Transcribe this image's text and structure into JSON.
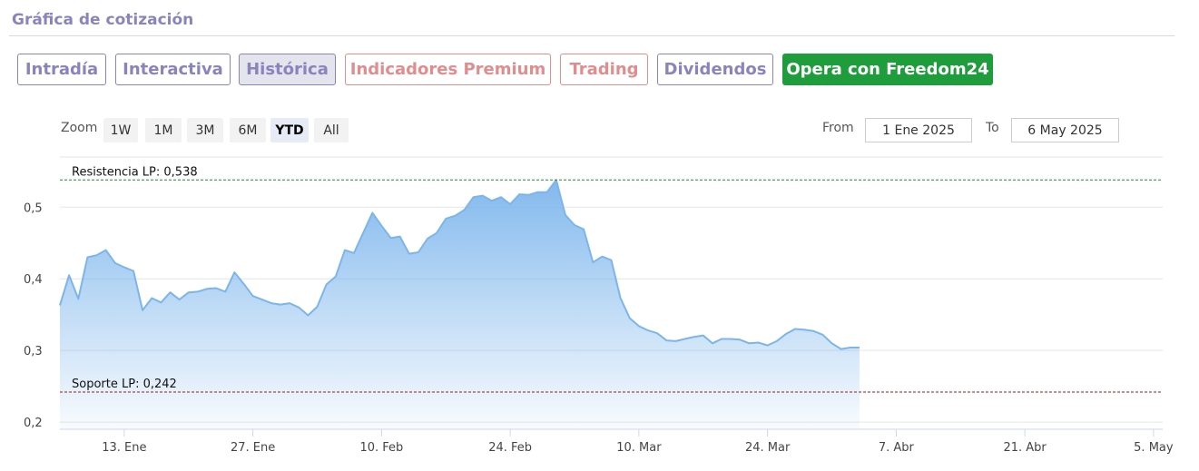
{
  "page_title": "Gráfica de cotización",
  "tabs": [
    {
      "label": "Intradía",
      "style": "purple"
    },
    {
      "label": "Interactiva",
      "style": "purple"
    },
    {
      "label": "Histórica",
      "style": "purple",
      "active": true
    },
    {
      "label": "Indicadores Premium",
      "style": "red"
    },
    {
      "label": "Trading",
      "style": "red"
    },
    {
      "label": "Dividendos",
      "style": "purple"
    },
    {
      "label": "Opera con Freedom24",
      "style": "green"
    }
  ],
  "zoom": {
    "label": "Zoom",
    "buttons": [
      "1W",
      "1M",
      "3M",
      "6M",
      "YTD",
      "All"
    ],
    "selected": "YTD"
  },
  "range": {
    "from_label": "From",
    "from_value": "1 Ene 2025",
    "to_label": "To",
    "to_value": "6 May 2025"
  },
  "colors": {
    "accent_purple": "#8a84bd",
    "accent_red": "#e08d8d",
    "accent_green": "#1f9d3c",
    "series_line": "#7cb5ec",
    "resistance_line": "#1e8a2e",
    "support_line": "#a01818"
  },
  "chart_data": {
    "type": "area",
    "title": "",
    "xlabel": "",
    "ylabel": "",
    "ylim": [
      0.19,
      0.57
    ],
    "xlim": [
      "2025-01-06",
      "2025-05-06"
    ],
    "yticks": [
      0.2,
      0.3,
      0.4,
      0.5
    ],
    "ytick_labels": [
      "0,2",
      "0,3",
      "0,4",
      "0,5"
    ],
    "xticks": [
      {
        "date": "2025-01-13",
        "label": "13. Ene"
      },
      {
        "date": "2025-01-27",
        "label": "27. Ene"
      },
      {
        "date": "2025-02-10",
        "label": "10. Feb"
      },
      {
        "date": "2025-02-24",
        "label": "24. Feb"
      },
      {
        "date": "2025-03-10",
        "label": "10. Mar"
      },
      {
        "date": "2025-03-24",
        "label": "24. Mar"
      },
      {
        "date": "2025-04-07",
        "label": "7. Abr"
      },
      {
        "date": "2025-04-21",
        "label": "21. Abr"
      },
      {
        "date": "2025-05-05",
        "label": "5. May"
      }
    ],
    "grid": true,
    "reference_lines": [
      {
        "label": "Resistencia LP: 0,538",
        "value": 0.538,
        "style": "dashed",
        "color": "#1e8a2e"
      },
      {
        "label": "Soporte LP: 0,242",
        "value": 0.242,
        "style": "dashed",
        "color": "#a01818"
      }
    ],
    "series": [
      {
        "points": [
          [
            "2025-01-06",
            0.363
          ],
          [
            "2025-01-07",
            0.405
          ],
          [
            "2025-01-08",
            0.372
          ],
          [
            "2025-01-09",
            0.43
          ],
          [
            "2025-01-10",
            0.433
          ],
          [
            "2025-01-11",
            0.44
          ],
          [
            "2025-01-12",
            0.422
          ],
          [
            "2025-01-13",
            0.416
          ],
          [
            "2025-01-14",
            0.411
          ],
          [
            "2025-01-15",
            0.356
          ],
          [
            "2025-01-16",
            0.373
          ],
          [
            "2025-01-17",
            0.367
          ],
          [
            "2025-01-18",
            0.381
          ],
          [
            "2025-01-19",
            0.371
          ],
          [
            "2025-01-20",
            0.381
          ],
          [
            "2025-01-21",
            0.382
          ],
          [
            "2025-01-22",
            0.386
          ],
          [
            "2025-01-23",
            0.387
          ],
          [
            "2025-01-24",
            0.382
          ],
          [
            "2025-01-25",
            0.409
          ],
          [
            "2025-01-26",
            0.393
          ],
          [
            "2025-01-27",
            0.376
          ],
          [
            "2025-01-28",
            0.371
          ],
          [
            "2025-01-29",
            0.366
          ],
          [
            "2025-01-30",
            0.364
          ],
          [
            "2025-01-31",
            0.366
          ],
          [
            "2025-02-01",
            0.36
          ],
          [
            "2025-02-02",
            0.349
          ],
          [
            "2025-02-03",
            0.361
          ],
          [
            "2025-02-04",
            0.392
          ],
          [
            "2025-02-05",
            0.403
          ],
          [
            "2025-02-06",
            0.44
          ],
          [
            "2025-02-07",
            0.436
          ],
          [
            "2025-02-08",
            0.464
          ],
          [
            "2025-02-09",
            0.492
          ],
          [
            "2025-02-10",
            0.474
          ],
          [
            "2025-02-11",
            0.457
          ],
          [
            "2025-02-12",
            0.459
          ],
          [
            "2025-02-13",
            0.435
          ],
          [
            "2025-02-14",
            0.437
          ],
          [
            "2025-02-15",
            0.456
          ],
          [
            "2025-02-16",
            0.464
          ],
          [
            "2025-02-17",
            0.484
          ],
          [
            "2025-02-18",
            0.488
          ],
          [
            "2025-02-19",
            0.496
          ],
          [
            "2025-02-20",
            0.514
          ],
          [
            "2025-02-21",
            0.516
          ],
          [
            "2025-02-22",
            0.509
          ],
          [
            "2025-02-23",
            0.514
          ],
          [
            "2025-02-24",
            0.504
          ],
          [
            "2025-02-25",
            0.518
          ],
          [
            "2025-02-26",
            0.517
          ],
          [
            "2025-02-27",
            0.521
          ],
          [
            "2025-02-28",
            0.521
          ],
          [
            "2025-03-01",
            0.538
          ],
          [
            "2025-03-02",
            0.489
          ],
          [
            "2025-03-03",
            0.475
          ],
          [
            "2025-03-04",
            0.469
          ],
          [
            "2025-03-05",
            0.423
          ],
          [
            "2025-03-06",
            0.431
          ],
          [
            "2025-03-07",
            0.426
          ],
          [
            "2025-03-08",
            0.373
          ],
          [
            "2025-03-09",
            0.345
          ],
          [
            "2025-03-10",
            0.334
          ],
          [
            "2025-03-11",
            0.328
          ],
          [
            "2025-03-12",
            0.324
          ],
          [
            "2025-03-13",
            0.314
          ],
          [
            "2025-03-14",
            0.313
          ],
          [
            "2025-03-15",
            0.316
          ],
          [
            "2025-03-16",
            0.319
          ],
          [
            "2025-03-17",
            0.321
          ],
          [
            "2025-03-18",
            0.31
          ],
          [
            "2025-03-19",
            0.316
          ],
          [
            "2025-03-20",
            0.316
          ],
          [
            "2025-03-21",
            0.315
          ],
          [
            "2025-03-22",
            0.31
          ],
          [
            "2025-03-23",
            0.311
          ],
          [
            "2025-03-24",
            0.307
          ],
          [
            "2025-03-25",
            0.313
          ],
          [
            "2025-03-26",
            0.323
          ],
          [
            "2025-03-27",
            0.33
          ],
          [
            "2025-03-28",
            0.329
          ],
          [
            "2025-03-29",
            0.327
          ],
          [
            "2025-03-30",
            0.322
          ],
          [
            "2025-03-31",
            0.31
          ],
          [
            "2025-04-01",
            0.302
          ],
          [
            "2025-04-02",
            0.304
          ],
          [
            "2025-04-03",
            0.304
          ]
        ]
      }
    ]
  }
}
